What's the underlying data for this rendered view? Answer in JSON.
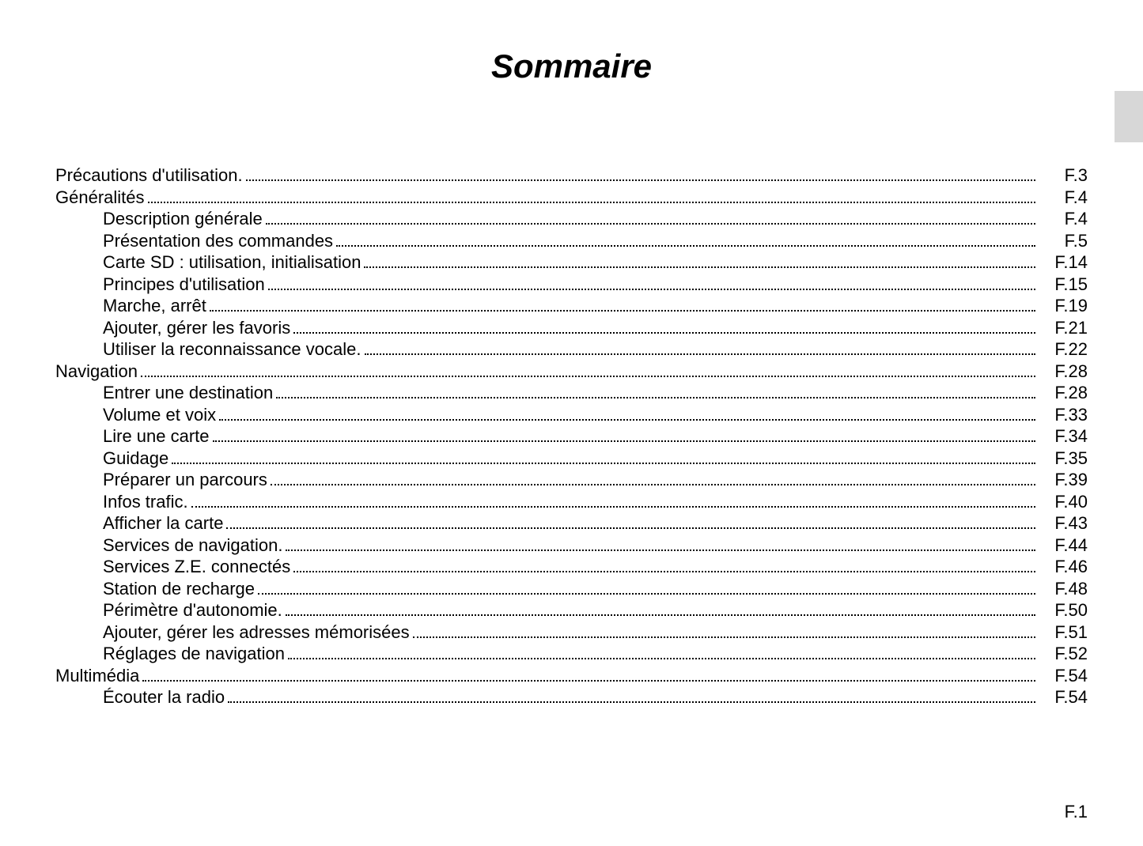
{
  "title": "Sommaire",
  "page_footer": "F.1",
  "title_fontsize": 42,
  "body_fontsize": 22,
  "text_color": "#000000",
  "background_color": "#ffffff",
  "tab_marker_color": "#d7d7d7",
  "toc": [
    {
      "level": 0,
      "label": "Précautions d'utilisation.",
      "page": "F.3"
    },
    {
      "level": 0,
      "label": "Généralités",
      "page": "F.4"
    },
    {
      "level": 1,
      "label": "Description générale",
      "page": "F.4"
    },
    {
      "level": 1,
      "label": "Présentation des commandes",
      "page": "F.5"
    },
    {
      "level": 1,
      "label": "Carte SD : utilisation, initialisation",
      "page": "F.14"
    },
    {
      "level": 1,
      "label": "Principes d'utilisation",
      "page": "F.15"
    },
    {
      "level": 1,
      "label": "Marche, arrêt",
      "page": "F.19"
    },
    {
      "level": 1,
      "label": "Ajouter, gérer les favoris",
      "page": "F.21"
    },
    {
      "level": 1,
      "label": "Utiliser la reconnaissance vocale.",
      "page": "F.22"
    },
    {
      "level": 0,
      "label": "Navigation",
      "page": "F.28"
    },
    {
      "level": 1,
      "label": "Entrer une destination",
      "page": "F.28"
    },
    {
      "level": 1,
      "label": "Volume et voix",
      "page": "F.33"
    },
    {
      "level": 1,
      "label": "Lire une carte",
      "page": "F.34"
    },
    {
      "level": 1,
      "label": "Guidage",
      "page": "F.35"
    },
    {
      "level": 1,
      "label": "Préparer un parcours",
      "page": "F.39"
    },
    {
      "level": 1,
      "label": "Infos trafic.",
      "page": "F.40"
    },
    {
      "level": 1,
      "label": "Afficher la carte",
      "page": "F.43"
    },
    {
      "level": 1,
      "label": "Services de navigation.",
      "page": "F.44"
    },
    {
      "level": 1,
      "label": "Services Z.E. connectés",
      "page": "F.46"
    },
    {
      "level": 1,
      "label": "Station de recharge",
      "page": "F.48"
    },
    {
      "level": 1,
      "label": "Périmètre d'autonomie.",
      "page": "F.50"
    },
    {
      "level": 1,
      "label": "Ajouter, gérer les adresses mémorisées",
      "page": "F.51"
    },
    {
      "level": 1,
      "label": "Réglages de navigation",
      "page": "F.52"
    },
    {
      "level": 0,
      "label": "Multimédia",
      "page": "F.54"
    },
    {
      "level": 1,
      "label": "Écouter la radio",
      "page": "F.54"
    }
  ]
}
